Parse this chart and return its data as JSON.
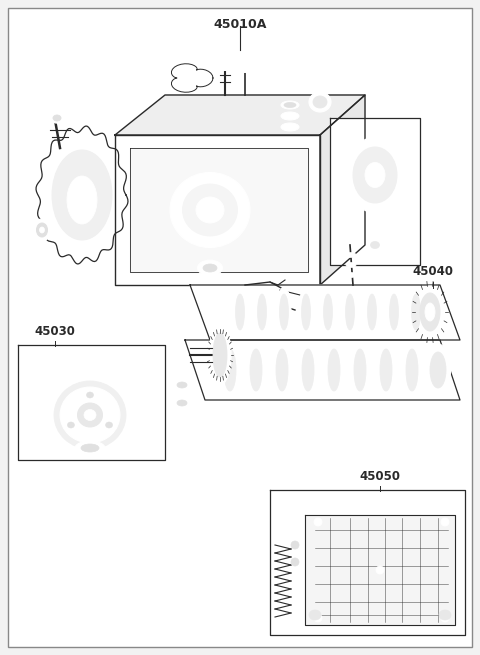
{
  "title": "45010A",
  "labels": {
    "main": "45010A",
    "l45040": "45040",
    "l45030": "45030",
    "l45050": "45050"
  },
  "bg": "#ffffff",
  "lc": "#2a2a2a",
  "fig_bg": "#f2f2f2",
  "border_color": "#999999"
}
